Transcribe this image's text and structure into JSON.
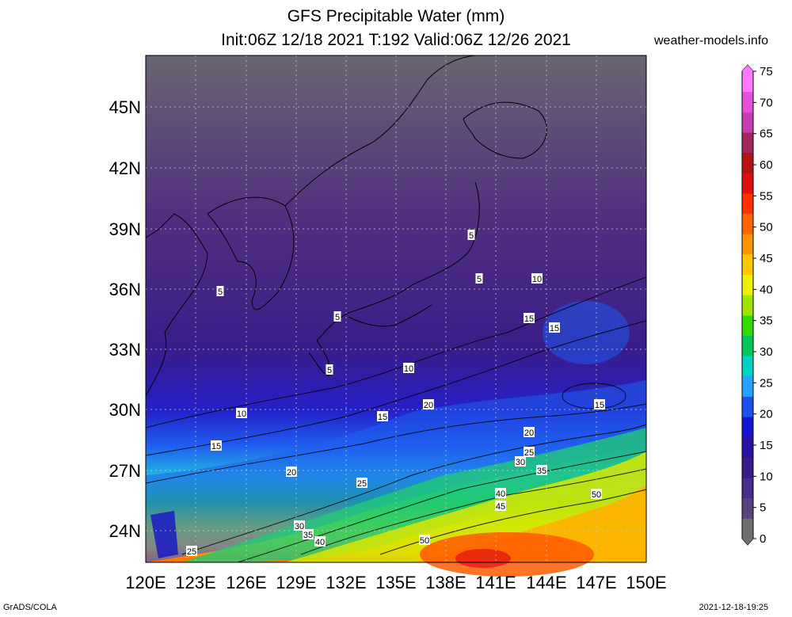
{
  "header": {
    "title": "GFS Precipitable Water (mm)",
    "subtitle": "Init:06Z 12/18 2021 T:192 Valid:06Z 12/26 2021",
    "site": "weather-models.info"
  },
  "map": {
    "lat_labels": [
      "45N",
      "42N",
      "39N",
      "36N",
      "33N",
      "30N",
      "27N",
      "24N"
    ],
    "lon_labels": [
      "120E",
      "123E",
      "126E",
      "129E",
      "132E",
      "135E",
      "138E",
      "141E",
      "144E",
      "147E",
      "150E"
    ],
    "contour_labels": [
      "5",
      "5",
      "5",
      "5",
      "5",
      "10",
      "10",
      "10",
      "15",
      "15",
      "15",
      "15",
      "15",
      "20",
      "20",
      "20",
      "25",
      "25",
      "25",
      "30",
      "30",
      "35",
      "35",
      "40",
      "40",
      "45",
      "50",
      "50"
    ]
  },
  "colorbar": {
    "ticks": [
      "75",
      "70",
      "65",
      "60",
      "55",
      "50",
      "45",
      "40",
      "35",
      "30",
      "25",
      "20",
      "15",
      "10",
      "5",
      "0"
    ],
    "colors": [
      "#6e6e6e",
      "#55457a",
      "#4a2a8a",
      "#3c1a8c",
      "#2a10a0",
      "#1414d2",
      "#1e50f0",
      "#28a0ff",
      "#00d2c8",
      "#00c85a",
      "#32dc00",
      "#a0e600",
      "#f0f000",
      "#ffc800",
      "#ff9600",
      "#ff6400",
      "#ff3200",
      "#e01010",
      "#b41414",
      "#a0285a",
      "#c83cb4",
      "#e650dc",
      "#ff78ff"
    ]
  },
  "footer": {
    "left": "GrADS/COLA",
    "right": "2021-12-18-19:25"
  }
}
